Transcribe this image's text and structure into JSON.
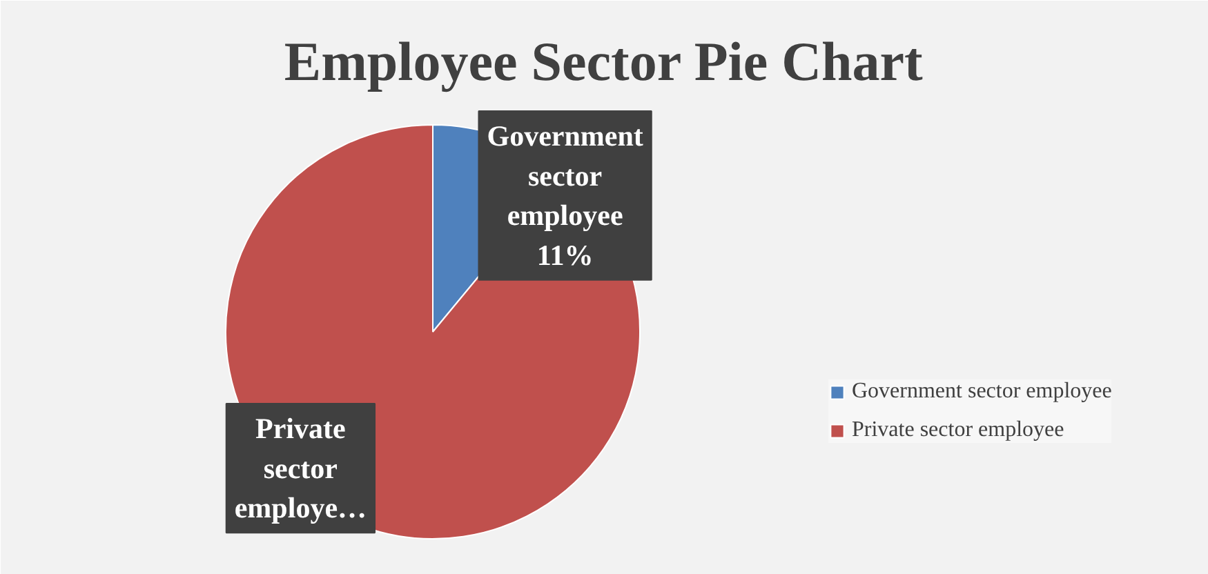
{
  "chart_data": {
    "type": "pie",
    "title": "Employee Sector Pie Chart",
    "categories": [
      "Government sector employee",
      "Private sector employee"
    ],
    "values": [
      11,
      89
    ],
    "colors": [
      "#4f81bd",
      "#c0504d"
    ],
    "value_labels": [
      "Government sector employee 11%",
      "Private sector employe…"
    ],
    "legend": "right"
  }
}
